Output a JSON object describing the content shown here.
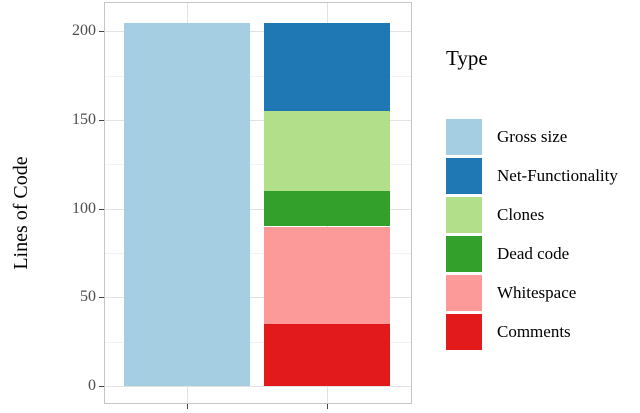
{
  "chart_data": {
    "type": "bar",
    "subtype": "stacked",
    "title": "",
    "xlabel": "",
    "ylabel": "Lines of Code",
    "ylim": [
      0,
      205
    ],
    "y_domain": [
      -9.5,
      216
    ],
    "y_major_ticks": [
      0,
      50,
      100,
      150,
      200
    ],
    "y_minor_ticks": [
      25,
      75,
      125,
      175
    ],
    "grid": "major and minor horizontal, major vertical at bar centers",
    "legend_position": "right",
    "bar_width_frac": 0.4118,
    "bars": [
      {
        "name": "gross-size-bar",
        "center_frac": 0.268,
        "segments": [
          {
            "label": "Gross size",
            "value": 205,
            "color": "#a6cee3"
          }
        ]
      },
      {
        "name": "breakdown-bar",
        "center_frac": 0.7255,
        "segments": [
          {
            "label": "Comments",
            "value": 35,
            "color": "#e31a1c"
          },
          {
            "label": "Whitespace",
            "value": 55,
            "color": "#fb9a99"
          },
          {
            "label": "Dead code",
            "value": 20,
            "color": "#33a02c"
          },
          {
            "label": "Clones",
            "value": 45,
            "color": "#b2df8a"
          },
          {
            "label": "Net-Functionality",
            "value": 50,
            "color": "#1f78b4"
          }
        ]
      }
    ]
  },
  "legend": {
    "title": "Type",
    "items": [
      {
        "label": "Gross size",
        "color": "#a6cee3"
      },
      {
        "label": "Net-Functionality",
        "color": "#1f78b4"
      },
      {
        "label": "Clones",
        "color": "#b2df8a"
      },
      {
        "label": "Dead code",
        "color": "#33a02c"
      },
      {
        "label": "Whitespace",
        "color": "#fb9a99"
      },
      {
        "label": "Comments",
        "color": "#e31a1c"
      }
    ]
  },
  "colors": {
    "background": "#ffffff",
    "panel_border": "#c6c6c6",
    "grid_major": "#e3e3e3",
    "grid_minor": "#f2f2f2",
    "tick_text": "#4d4d4d",
    "tick_mark": "#444444",
    "title_text": "#000000"
  }
}
